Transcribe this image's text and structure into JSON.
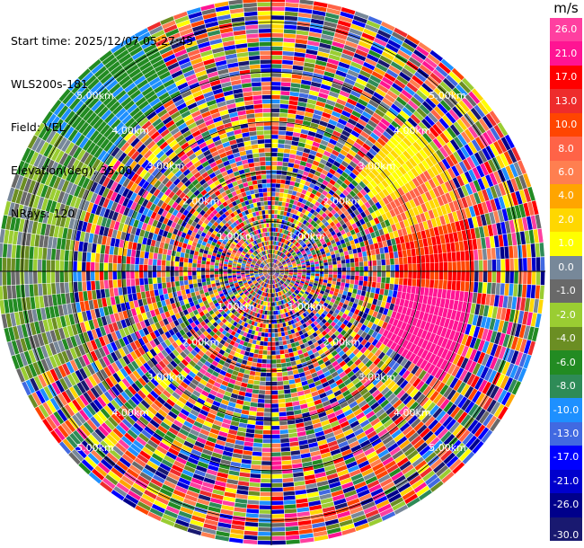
{
  "info": {
    "start_time": "Start time: 2025/12/07 05:27:45",
    "instrument": "WLS200s-181",
    "field": "Field: VEL",
    "elevation": "Elevation(deg): 35.00",
    "nrays": "NRays: 120"
  },
  "colorbar": {
    "unit": "m/s",
    "ticks": [
      "26.0",
      "21.0",
      "17.0",
      "13.0",
      "10.0",
      "8.0",
      "6.0",
      "4.0",
      "2.0",
      "1.0",
      "0.0",
      "-1.0",
      "-2.0",
      "-4.0",
      "-6.0",
      "-8.0",
      "-10.0",
      "-13.0",
      "-17.0",
      "-21.0",
      "-26.0",
      "-30.0"
    ],
    "colors": [
      "#ff3fa0",
      "#ff1493",
      "#ff0000",
      "#ee2c2c",
      "#ff4500",
      "#ff6347",
      "#ff7f50",
      "#ffa500",
      "#ffd700",
      "#ffff00",
      "#778899",
      "#696969",
      "#9acd32",
      "#6b8e23",
      "#228b22",
      "#2e8b57",
      "#1e90ff",
      "#4169e1",
      "#0000ff",
      "#0000cd",
      "#00008b",
      "#191970"
    ]
  },
  "chart_data": {
    "type": "heatmap",
    "projection": "polar PPI",
    "field": "VEL",
    "unit": "m/s",
    "nrays": 120,
    "elevation_deg": 35.0,
    "range_ring_labels": [
      "1.00km",
      "2.00km",
      "3.00km",
      "4.00km",
      "5.00km"
    ],
    "range_km": [
      0,
      5.5
    ],
    "color_scale": [
      -30.0,
      26.0
    ],
    "grid": true
  }
}
